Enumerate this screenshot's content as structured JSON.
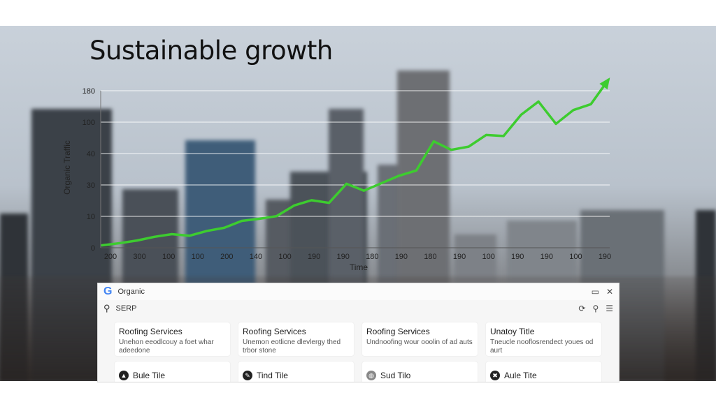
{
  "chart_data": {
    "type": "line",
    "title": "Sustainable growth",
    "xlabel": "Time",
    "ylabel": "Organic Traffic",
    "yticks": [
      "0",
      "10",
      "30",
      "40",
      "100",
      "180"
    ],
    "xticks": [
      "200",
      "300",
      "100",
      "100",
      "200",
      "140",
      "100",
      "190",
      "190",
      "180",
      "190",
      "180",
      "190",
      "100",
      "190",
      "190",
      "100",
      "190"
    ],
    "series": [
      {
        "color": "#3dcc2f",
        "values": [
          0.4,
          1.2,
          2.2,
          3.6,
          4.6,
          4.0,
          5.8,
          7.0,
          9.6,
          10.4,
          11.4,
          15.4,
          17.4,
          16.4,
          23.6,
          21.0,
          23.8,
          26.6,
          28.6,
          39.6,
          36.4,
          37.6,
          42.0,
          41.6,
          49.6,
          54.6,
          46.2,
          51.4,
          53.6,
          62.8
        ]
      }
    ],
    "grid": true,
    "line_color": "#3dcc2f"
  },
  "serp": {
    "tab_label": "Organic",
    "search_text": "SERP",
    "logo": "G",
    "cards": [
      {
        "title": "Roofing Services",
        "desc": "Unehon eeodlcouy a foet whar adeedone"
      },
      {
        "title": "Roofing Services",
        "desc": "Unemon eotlicne dlevlergy thed trbor stone"
      },
      {
        "title": "Roofing Services",
        "desc": "Undnoofing wour ooolin of ad auts"
      },
      {
        "title": "Unatoy Title",
        "desc": "Tneucle nooflosrendect youes od aurt"
      }
    ],
    "cards2": [
      {
        "title": "Bule Tile"
      },
      {
        "title": "Tind Tile"
      },
      {
        "title": "Sud Tilo"
      },
      {
        "title": "Aule Tite"
      }
    ]
  }
}
